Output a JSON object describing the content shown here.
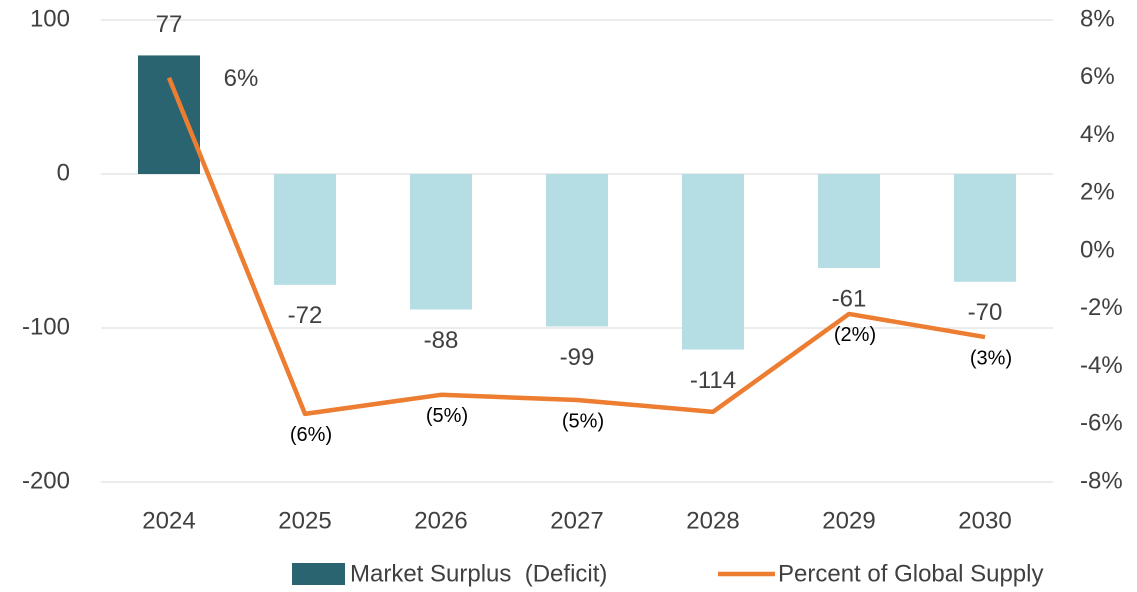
{
  "chart_data": {
    "type": "bar-line",
    "categories": [
      "2024",
      "2025",
      "2026",
      "2027",
      "2028",
      "2029",
      "2030"
    ],
    "series": [
      {
        "name": "Market Surplus  (Deficit)",
        "type": "bar",
        "color": "#2a6470",
        "colors": [
          "#2a6470",
          "#b5dde4",
          "#b5dde4",
          "#b5dde4",
          "#b5dde4",
          "#b5dde4",
          "#b5dde4"
        ],
        "values": [
          77,
          -72,
          -88,
          -99,
          -114,
          -61,
          -70
        ]
      },
      {
        "name": "Percent of Global Supply",
        "type": "line",
        "axis": "y2",
        "color": "#ed7d31",
        "values": [
          6,
          -5.64,
          -4.98,
          -5.16,
          -5.57,
          -2.18,
          -2.98
        ],
        "value_labels": [
          "6%",
          "(6%)",
          "(5%)",
          "(5%)",
          null,
          "(2%)",
          "(3%)"
        ]
      }
    ],
    "ylim": [
      -200,
      100
    ],
    "yticks": [
      -200,
      -100,
      0,
      100
    ],
    "y2lim": [
      -8,
      8
    ],
    "y2ticks": [
      {
        "value": -8,
        "label": "-8%"
      },
      {
        "value": -6,
        "label": "-6%"
      },
      {
        "value": -4,
        "label": "-4%"
      },
      {
        "value": -2,
        "label": "-2%"
      },
      {
        "value": 0,
        "label": "0%"
      },
      {
        "value": 2,
        "label": "2%"
      },
      {
        "value": 4,
        "label": "4%"
      },
      {
        "value": 6,
        "label": "6%"
      },
      {
        "value": 8,
        "label": "8%"
      }
    ],
    "grid": true
  }
}
